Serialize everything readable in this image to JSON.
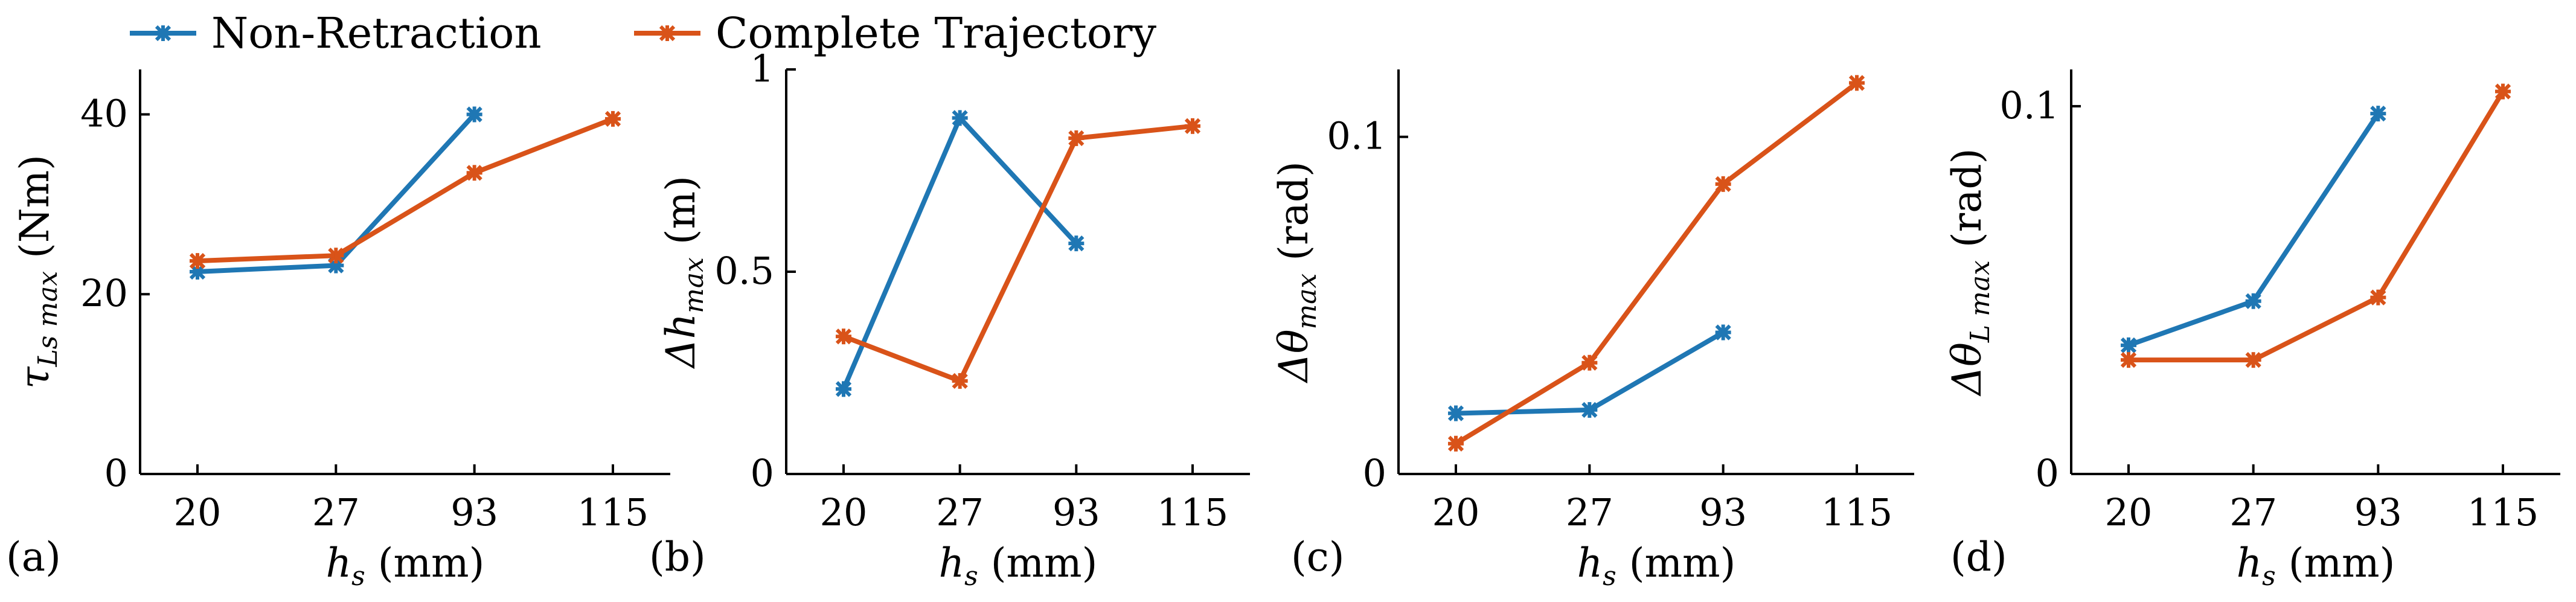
{
  "colors": {
    "Non-Retraction": "#1f77b4",
    "Complete Trajectory": "#d95319"
  },
  "legend": [
    {
      "name": "Non-Retraction",
      "color": "#1f77b4"
    },
    {
      "name": "Complete Trajectory",
      "color": "#d95319"
    }
  ],
  "chart_data": [
    {
      "type": "line",
      "panel_label": "(a)",
      "categories": [
        "20",
        "27",
        "93",
        "115"
      ],
      "xlabel_main": "h",
      "xlabel_sub": "s",
      "xlabel_unit": " (mm)",
      "ylabel_main": "τ",
      "ylabel_sub": "Ls max",
      "ylabel_unit": " (Nm)",
      "ylim": [
        0,
        45
      ],
      "yticks": [
        0,
        20,
        40
      ],
      "ytick_labels": [
        "0",
        "20",
        "40"
      ],
      "series": [
        {
          "name": "Non-Retraction",
          "values": [
            22.5,
            23.2,
            40.0,
            null
          ]
        },
        {
          "name": "Complete Trajectory",
          "values": [
            23.7,
            24.3,
            33.5,
            39.5
          ]
        }
      ]
    },
    {
      "type": "line",
      "panel_label": "(b)",
      "categories": [
        "20",
        "27",
        "93",
        "115"
      ],
      "xlabel_main": "h",
      "xlabel_sub": "s",
      "xlabel_unit": " (mm)",
      "ylabel_main": "Δh",
      "ylabel_sub": "max",
      "ylabel_unit": " (m)",
      "ylim": [
        0,
        1
      ],
      "yticks": [
        0,
        0.5,
        1
      ],
      "ytick_labels": [
        "0",
        "0.5",
        "1"
      ],
      "series": [
        {
          "name": "Non-Retraction",
          "values": [
            0.21,
            0.88,
            0.57,
            null
          ]
        },
        {
          "name": "Complete Trajectory",
          "values": [
            0.34,
            0.23,
            0.83,
            0.86
          ]
        }
      ]
    },
    {
      "type": "line",
      "panel_label": "(c)",
      "categories": [
        "20",
        "27",
        "93",
        "115"
      ],
      "xlabel_main": "h",
      "xlabel_sub": "s",
      "xlabel_unit": " (mm)",
      "ylabel_main": "Δθ",
      "ylabel_sub": "max",
      "ylabel_unit": " (rad)",
      "ylim": [
        0,
        0.12
      ],
      "yticks": [
        0,
        0.1
      ],
      "ytick_labels": [
        "0",
        "0.1"
      ],
      "series": [
        {
          "name": "Non-Retraction",
          "values": [
            0.018,
            0.019,
            0.042,
            null
          ]
        },
        {
          "name": "Complete Trajectory",
          "values": [
            0.009,
            0.033,
            0.086,
            0.116
          ]
        }
      ]
    },
    {
      "type": "line",
      "panel_label": "(d)",
      "categories": [
        "20",
        "27",
        "93",
        "115"
      ],
      "xlabel_main": "h",
      "xlabel_sub": "s",
      "xlabel_unit": " (mm)",
      "ylabel_main": "Δθ",
      "ylabel_sub": "L max",
      "ylabel_unit": " (rad)",
      "ylim": [
        0,
        0.11
      ],
      "yticks": [
        0,
        0.1
      ],
      "ytick_labels": [
        "0",
        "0.1"
      ],
      "series": [
        {
          "name": "Non-Retraction",
          "values": [
            0.035,
            0.047,
            0.098,
            null
          ]
        },
        {
          "name": "Complete Trajectory",
          "values": [
            0.031,
            0.031,
            0.048,
            0.104
          ]
        }
      ]
    }
  ]
}
